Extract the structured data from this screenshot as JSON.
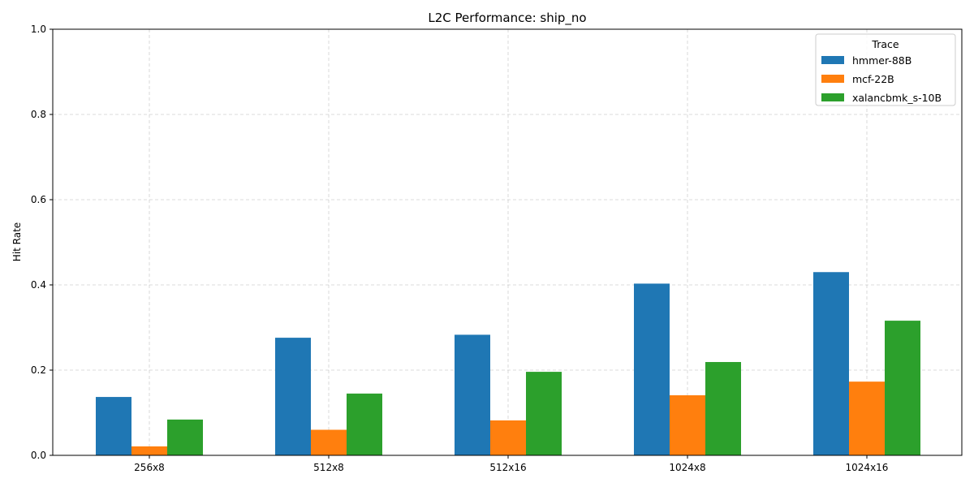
{
  "chart_data": {
    "type": "bar",
    "title": "L2C Performance: ship_no",
    "xlabel": "",
    "ylabel": "Hit Rate",
    "categories": [
      "256x8",
      "512x8",
      "512x16",
      "1024x8",
      "1024x16"
    ],
    "series": [
      {
        "name": "hmmer-88B",
        "color": "#1f77b4",
        "values": [
          0.137,
          0.276,
          0.283,
          0.403,
          0.43
        ]
      },
      {
        "name": "mcf-22B",
        "color": "#ff7f0e",
        "values": [
          0.021,
          0.06,
          0.082,
          0.141,
          0.173
        ]
      },
      {
        "name": "xalancbmk_s-10B",
        "color": "#2ca02c",
        "values": [
          0.084,
          0.145,
          0.196,
          0.219,
          0.316
        ]
      }
    ],
    "ylim": [
      0,
      1.0
    ],
    "yticks": [
      0.0,
      0.2,
      0.4,
      0.6,
      0.8,
      1.0
    ],
    "ytick_labels": [
      "0.0",
      "0.2",
      "0.4",
      "0.6",
      "0.8",
      "1.0"
    ],
    "grid": true,
    "legend": {
      "title": "Trace",
      "placement": "top-right"
    }
  }
}
